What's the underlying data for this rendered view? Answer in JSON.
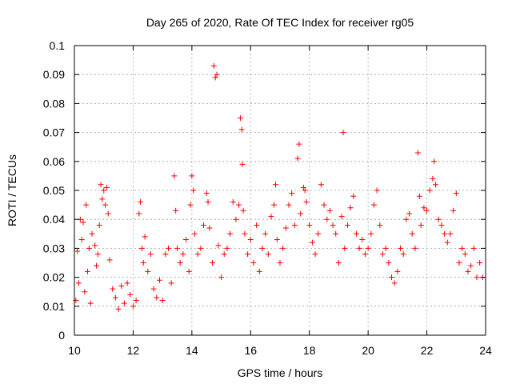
{
  "chart_data": {
    "type": "scatter",
    "title": "Day 265 of 2020, Rate Of TEC Index for receiver rg05",
    "xlabel": "GPS time / hours",
    "ylabel": "ROTI / TECUs",
    "xlim": [
      10,
      24
    ],
    "ylim": [
      0,
      0.1
    ],
    "x_ticks": [
      10,
      12,
      14,
      16,
      18,
      20,
      22,
      24
    ],
    "x_tick_labels": [
      "10",
      "12",
      "14",
      "16",
      "18",
      "20",
      "22",
      "24"
    ],
    "y_ticks": [
      0,
      0.01,
      0.02,
      0.03,
      0.04,
      0.05,
      0.06,
      0.07,
      0.08,
      0.09,
      0.1
    ],
    "y_tick_labels": [
      "0",
      "0.01",
      "0.02",
      "0.03",
      "0.04",
      "0.05",
      "0.06",
      "0.07",
      "0.08",
      "0.09",
      "0.1"
    ],
    "grid": true,
    "marker": "plus",
    "color": "#ff0000",
    "series": [
      {
        "points": [
          [
            10.05,
            0.012
          ],
          [
            10.1,
            0.029
          ],
          [
            10.15,
            0.018
          ],
          [
            10.2,
            0.04
          ],
          [
            10.25,
            0.033
          ],
          [
            10.3,
            0.039
          ],
          [
            10.35,
            0.015
          ],
          [
            10.4,
            0.045
          ],
          [
            10.45,
            0.022
          ],
          [
            10.5,
            0.03
          ],
          [
            10.55,
            0.011
          ],
          [
            10.6,
            0.035
          ],
          [
            10.7,
            0.031
          ],
          [
            10.75,
            0.024
          ],
          [
            10.8,
            0.028
          ],
          [
            10.85,
            0.038
          ],
          [
            10.9,
            0.052
          ],
          [
            10.95,
            0.047
          ],
          [
            11.0,
            0.05
          ],
          [
            11.05,
            0.045
          ],
          [
            11.1,
            0.051
          ],
          [
            11.15,
            0.042
          ],
          [
            11.2,
            0.026
          ],
          [
            11.3,
            0.016
          ],
          [
            11.4,
            0.013
          ],
          [
            11.5,
            0.009
          ],
          [
            11.6,
            0.017
          ],
          [
            11.7,
            0.011
          ],
          [
            11.8,
            0.018
          ],
          [
            11.9,
            0.014
          ],
          [
            12.0,
            0.01
          ],
          [
            12.1,
            0.012
          ],
          [
            12.2,
            0.042
          ],
          [
            12.25,
            0.046
          ],
          [
            12.3,
            0.03
          ],
          [
            12.35,
            0.025
          ],
          [
            12.4,
            0.034
          ],
          [
            12.5,
            0.022
          ],
          [
            12.6,
            0.028
          ],
          [
            12.7,
            0.016
          ],
          [
            12.8,
            0.013
          ],
          [
            12.9,
            0.019
          ],
          [
            13.0,
            0.012
          ],
          [
            13.1,
            0.028
          ],
          [
            13.2,
            0.03
          ],
          [
            13.3,
            0.018
          ],
          [
            13.4,
            0.055
          ],
          [
            13.45,
            0.043
          ],
          [
            13.5,
            0.03
          ],
          [
            13.6,
            0.025
          ],
          [
            13.7,
            0.028
          ],
          [
            13.8,
            0.033
          ],
          [
            13.9,
            0.022
          ],
          [
            13.95,
            0.045
          ],
          [
            14.0,
            0.055
          ],
          [
            14.05,
            0.05
          ],
          [
            14.1,
            0.035
          ],
          [
            14.2,
            0.028
          ],
          [
            14.3,
            0.03
          ],
          [
            14.4,
            0.038
          ],
          [
            14.5,
            0.049
          ],
          [
            14.55,
            0.046
          ],
          [
            14.6,
            0.037
          ],
          [
            14.7,
            0.025
          ],
          [
            14.75,
            0.093
          ],
          [
            14.8,
            0.089
          ],
          [
            14.85,
            0.09
          ],
          [
            14.9,
            0.031
          ],
          [
            15.0,
            0.02
          ],
          [
            15.1,
            0.028
          ],
          [
            15.2,
            0.03
          ],
          [
            15.3,
            0.035
          ],
          [
            15.4,
            0.046
          ],
          [
            15.5,
            0.04
          ],
          [
            15.6,
            0.045
          ],
          [
            15.65,
            0.075
          ],
          [
            15.7,
            0.071
          ],
          [
            15.72,
            0.059
          ],
          [
            15.75,
            0.043
          ],
          [
            15.8,
            0.035
          ],
          [
            15.9,
            0.028
          ],
          [
            16.0,
            0.033
          ],
          [
            16.1,
            0.025
          ],
          [
            16.2,
            0.038
          ],
          [
            16.3,
            0.022
          ],
          [
            16.4,
            0.03
          ],
          [
            16.5,
            0.035
          ],
          [
            16.6,
            0.028
          ],
          [
            16.7,
            0.041
          ],
          [
            16.8,
            0.045
          ],
          [
            16.85,
            0.052
          ],
          [
            16.9,
            0.033
          ],
          [
            17.0,
            0.025
          ],
          [
            17.1,
            0.03
          ],
          [
            17.2,
            0.037
          ],
          [
            17.3,
            0.045
          ],
          [
            17.4,
            0.049
          ],
          [
            17.5,
            0.038
          ],
          [
            17.6,
            0.061
          ],
          [
            17.65,
            0.066
          ],
          [
            17.7,
            0.042
          ],
          [
            17.8,
            0.051
          ],
          [
            17.85,
            0.05
          ],
          [
            17.9,
            0.046
          ],
          [
            18.0,
            0.038
          ],
          [
            18.1,
            0.032
          ],
          [
            18.2,
            0.028
          ],
          [
            18.3,
            0.035
          ],
          [
            18.4,
            0.052
          ],
          [
            18.5,
            0.045
          ],
          [
            18.6,
            0.04
          ],
          [
            18.7,
            0.043
          ],
          [
            18.8,
            0.038
          ],
          [
            18.9,
            0.035
          ],
          [
            19.0,
            0.025
          ],
          [
            19.1,
            0.041
          ],
          [
            19.15,
            0.07
          ],
          [
            19.2,
            0.03
          ],
          [
            19.3,
            0.038
          ],
          [
            19.4,
            0.044
          ],
          [
            19.5,
            0.048
          ],
          [
            19.6,
            0.035
          ],
          [
            19.7,
            0.03
          ],
          [
            19.8,
            0.033
          ],
          [
            19.9,
            0.028
          ],
          [
            20.0,
            0.03
          ],
          [
            20.1,
            0.035
          ],
          [
            20.2,
            0.045
          ],
          [
            20.3,
            0.05
          ],
          [
            20.4,
            0.038
          ],
          [
            20.5,
            0.028
          ],
          [
            20.6,
            0.03
          ],
          [
            20.7,
            0.025
          ],
          [
            20.8,
            0.02
          ],
          [
            20.9,
            0.018
          ],
          [
            21.0,
            0.022
          ],
          [
            21.1,
            0.03
          ],
          [
            21.2,
            0.028
          ],
          [
            21.3,
            0.04
          ],
          [
            21.4,
            0.042
          ],
          [
            21.5,
            0.035
          ],
          [
            21.6,
            0.03
          ],
          [
            21.7,
            0.063
          ],
          [
            21.75,
            0.048
          ],
          [
            21.8,
            0.038
          ],
          [
            21.9,
            0.044
          ],
          [
            22.0,
            0.043
          ],
          [
            22.1,
            0.05
          ],
          [
            22.2,
            0.054
          ],
          [
            22.25,
            0.06
          ],
          [
            22.3,
            0.052
          ],
          [
            22.4,
            0.04
          ],
          [
            22.5,
            0.038
          ],
          [
            22.6,
            0.035
          ],
          [
            22.7,
            0.032
          ],
          [
            22.8,
            0.035
          ],
          [
            22.9,
            0.043
          ],
          [
            23.0,
            0.049
          ],
          [
            23.1,
            0.025
          ],
          [
            23.2,
            0.03
          ],
          [
            23.3,
            0.028
          ],
          [
            23.4,
            0.022
          ],
          [
            23.5,
            0.024
          ],
          [
            23.6,
            0.03
          ],
          [
            23.7,
            0.02
          ],
          [
            23.8,
            0.025
          ],
          [
            23.9,
            0.02
          ]
        ]
      }
    ]
  }
}
